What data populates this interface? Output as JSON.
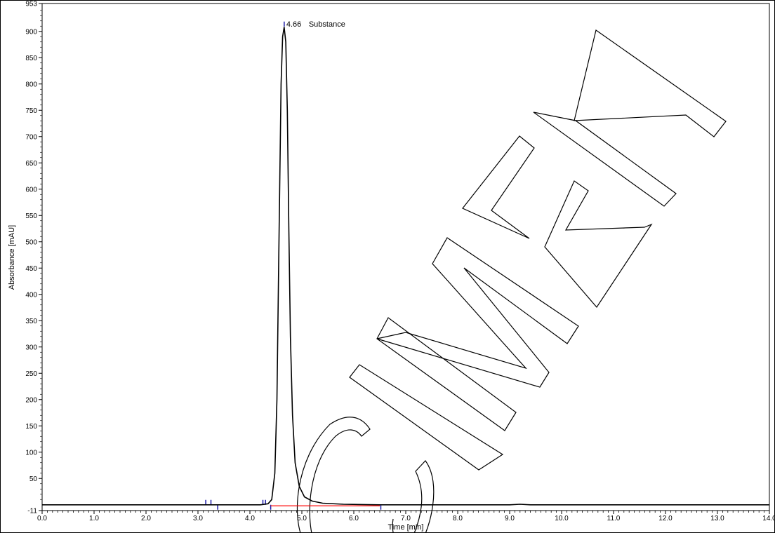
{
  "chart_data": {
    "type": "line",
    "xlabel": "Time [min]",
    "ylabel": "Absorbance [mAU]",
    "xlim": [
      0.0,
      14.0
    ],
    "ylim": [
      -11,
      953
    ],
    "x_ticks": [
      "0.0",
      "1.0",
      "2.0",
      "3.0",
      "4.0",
      "5.0",
      "6.0",
      "7.0",
      "8.0",
      "9.0",
      "10.0",
      "11.0",
      "12.0",
      "13.0",
      "14.0"
    ],
    "y_ticks": [
      "953",
      "900",
      "850",
      "800",
      "750",
      "700",
      "650",
      "600",
      "550",
      "500",
      "450",
      "400",
      "350",
      "300",
      "250",
      "200",
      "150",
      "100",
      "50",
      "-11"
    ],
    "grid": false,
    "series": [
      {
        "color": "#000000",
        "points": [
          [
            0.0,
            0
          ],
          [
            3.0,
            0
          ],
          [
            4.2,
            0
          ],
          [
            4.35,
            2
          ],
          [
            4.42,
            10
          ],
          [
            4.48,
            60
          ],
          [
            4.52,
            200
          ],
          [
            4.56,
            500
          ],
          [
            4.6,
            800
          ],
          [
            4.63,
            890
          ],
          [
            4.66,
            908
          ],
          [
            4.69,
            880
          ],
          [
            4.72,
            750
          ],
          [
            4.75,
            520
          ],
          [
            4.78,
            320
          ],
          [
            4.82,
            170
          ],
          [
            4.87,
            80
          ],
          [
            4.95,
            35
          ],
          [
            5.05,
            15
          ],
          [
            5.2,
            7
          ],
          [
            5.4,
            3
          ],
          [
            5.8,
            1
          ],
          [
            6.5,
            0
          ],
          [
            9.0,
            0
          ],
          [
            9.2,
            1
          ],
          [
            9.4,
            0
          ],
          [
            14.0,
            0
          ]
        ]
      }
    ],
    "peak_annotation": {
      "time": 4.66,
      "value": 908,
      "label_time": "4.66",
      "label_name": "Substance"
    },
    "baseline": {
      "color": "#ff0000",
      "from": 4.4,
      "to": 6.5
    },
    "integration_marks": [
      3.15,
      3.25,
      3.38,
      4.25,
      4.3,
      4.4,
      6.52
    ],
    "colors": {
      "trace": "#000000",
      "baseline": "#ff0000",
      "marks": "#1a1aa8",
      "watermark": "#000000"
    },
    "watermark": "SPECIMEN"
  }
}
